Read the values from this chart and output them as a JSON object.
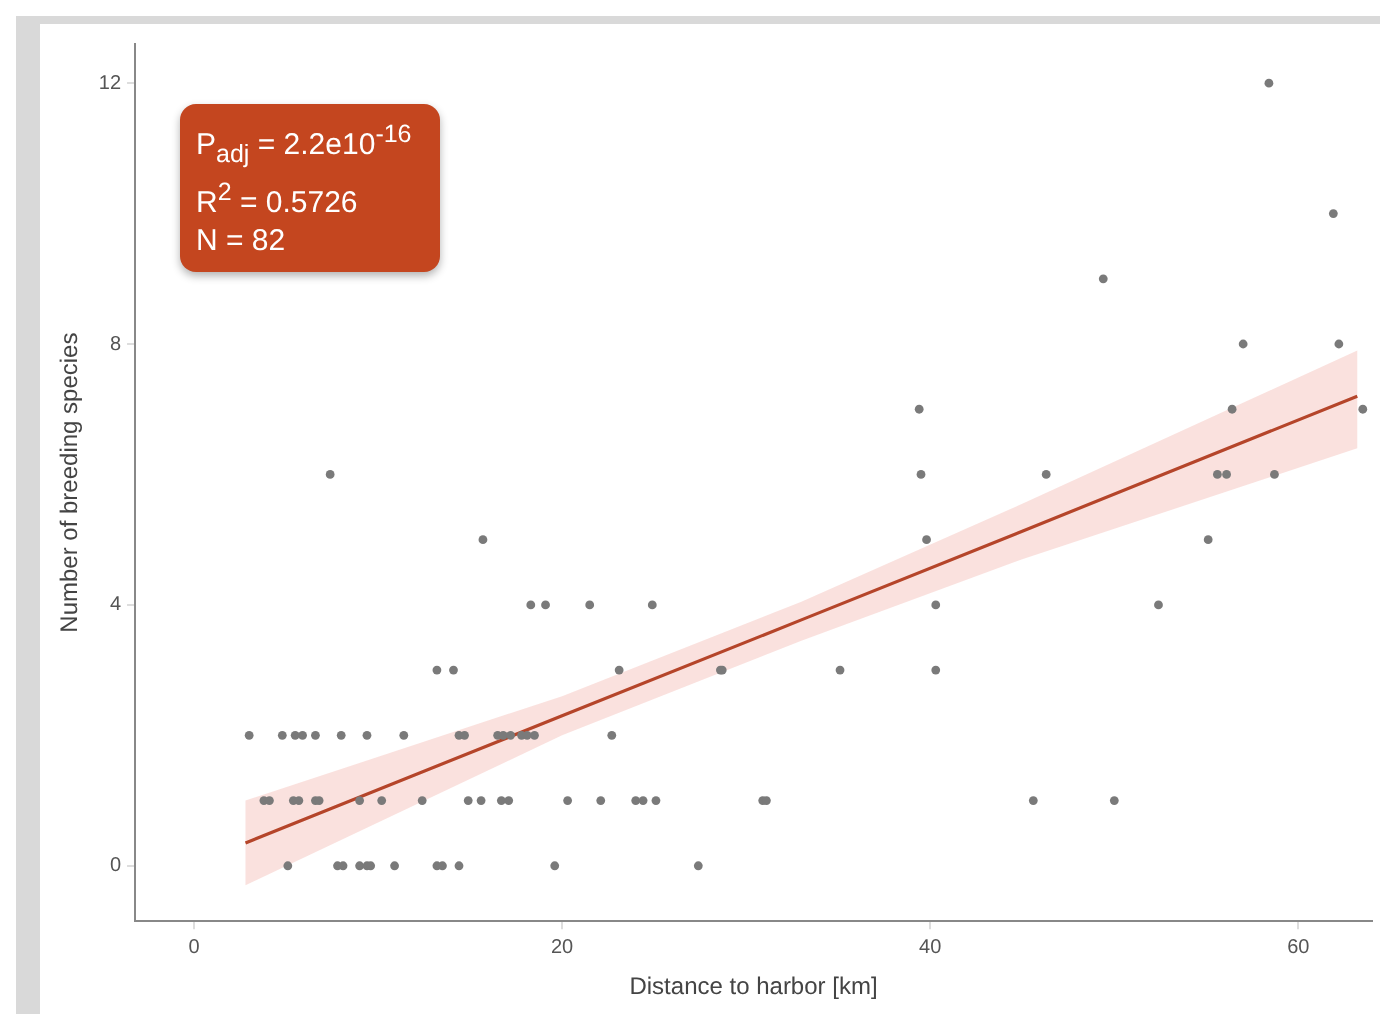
{
  "chart_data": {
    "type": "scatter",
    "xlabel": "Distance to harbor [km]",
    "ylabel": "Number of breeding species",
    "annotations": [
      "P$_{adj}$ = 2.2e10$^{-16}$",
      "R$^{2}$ = 0.5726",
      "N = 82"
    ],
    "xlim": [
      -3.2,
      64
    ],
    "ylim": [
      -0.85,
      12.6
    ],
    "xticks": [
      0,
      20,
      40,
      60
    ],
    "yticks": [
      0,
      4,
      8,
      12
    ],
    "grid": false,
    "legend": false,
    "marker": "circle",
    "series": [
      {
        "color": "#7a7a7a",
        "x": [
          5.1,
          7.8,
          8.1,
          9.0,
          9.4,
          9.6,
          10.9,
          13.2,
          13.5,
          14.4,
          19.6,
          27.4,
          3.8,
          4.1,
          5.4,
          5.7,
          6.6,
          6.8,
          9.0,
          10.2,
          12.4,
          14.9,
          15.6,
          16.7,
          17.1,
          20.3,
          22.1,
          24.0,
          24.4,
          25.1,
          30.9,
          31.1,
          45.6,
          50.0,
          3.0,
          4.8,
          5.5,
          5.9,
          6.6,
          8.0,
          9.4,
          11.4,
          14.4,
          14.7,
          16.5,
          16.8,
          17.2,
          17.8,
          18.1,
          18.5,
          22.7,
          13.2,
          14.1,
          23.1,
          28.6,
          28.7,
          35.1,
          40.3,
          18.3,
          19.1,
          21.5,
          24.9,
          40.3,
          52.4,
          15.7,
          39.8,
          55.1,
          7.4,
          39.5,
          46.3,
          55.6,
          56.1,
          58.7,
          39.4,
          56.4,
          63.5,
          57.0,
          62.2,
          49.4,
          61.9,
          58.4
        ],
        "values": [
          0,
          0,
          0,
          0,
          0,
          0,
          0,
          0,
          0,
          0,
          0,
          0,
          1,
          1,
          1,
          1,
          1,
          1,
          1,
          1,
          1,
          1,
          1,
          1,
          1,
          1,
          1,
          1,
          1,
          1,
          1,
          1,
          1,
          1,
          2,
          2,
          2,
          2,
          2,
          2,
          2,
          2,
          2,
          2,
          2,
          2,
          2,
          2,
          2,
          2,
          2,
          3,
          3,
          3,
          3,
          3,
          3,
          3,
          4,
          4,
          4,
          4,
          4,
          4,
          5,
          5,
          5,
          6,
          6,
          6,
          6,
          6,
          6,
          7,
          7,
          7,
          8,
          8,
          9,
          10,
          12
        ]
      },
      {
        "type": "line",
        "color": "#b5452a",
        "line_style": "solid",
        "marker": "none",
        "x": [
          2.8,
          20,
          33,
          45,
          63.2
        ],
        "values": [
          0.35,
          2.3,
          3.77,
          5.13,
          7.2
        ],
        "lower": [
          -0.3,
          2.0,
          3.45,
          4.7,
          6.4
        ],
        "upper": [
          1.0,
          2.6,
          4.05,
          5.55,
          7.9
        ]
      }
    ]
  }
}
